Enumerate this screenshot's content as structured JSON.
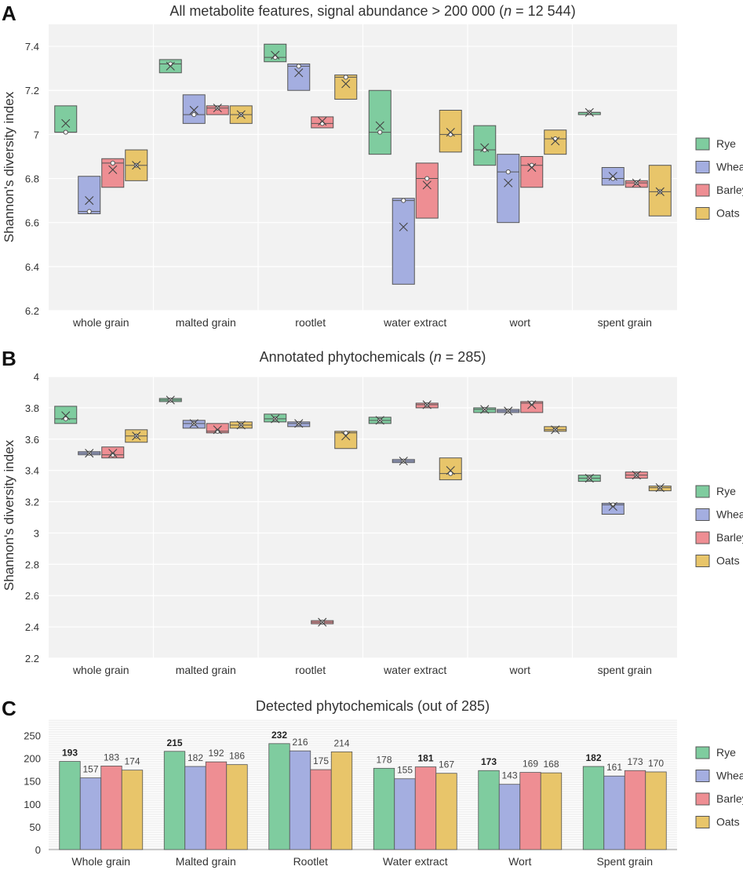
{
  "colors": {
    "Rye": "#7fcc9f",
    "Wheat": "#a4aee0",
    "Barley": "#ee8e93",
    "Oats": "#e8c56a",
    "plot_bg": "#f2f2f2",
    "grid": "#ffffff",
    "edge": "#555555"
  },
  "legend": [
    "Rye",
    "Wheat",
    "Barley",
    "Oats"
  ],
  "chart_data": [
    {
      "panel": "A",
      "type": "box",
      "title_parts": [
        "All metabolite features, signal abundance > 200 000 (",
        "n",
        " = 12 544)"
      ],
      "ylabel": "Shannon's diversity index",
      "ylim": [
        6.2,
        7.5
      ],
      "yticks": [
        6.2,
        6.4,
        6.6,
        6.8,
        7,
        7.2,
        7.4
      ],
      "ytick_labels": [
        "6.2",
        "6.4",
        "6.6",
        "6.8",
        "7",
        "7.2",
        "7.4"
      ],
      "categories": [
        "whole grain",
        "malted grain",
        "rootlet",
        "water extract",
        "wort",
        "spent grain"
      ],
      "series": [
        {
          "name": "Rye",
          "boxes": [
            {
              "q1": 7.01,
              "q3": 7.13,
              "median": 7.01,
              "mean": 7.05,
              "point": 7.01
            },
            {
              "q1": 7.28,
              "q3": 7.34,
              "median": 7.32,
              "mean": 7.31,
              "point": 7.32
            },
            {
              "q1": 7.33,
              "q3": 7.41,
              "median": 7.35,
              "mean": 7.36,
              "point": 7.35
            },
            {
              "q1": 6.91,
              "q3": 7.2,
              "median": 7.01,
              "mean": 7.04,
              "point": 7.01
            },
            {
              "q1": 6.86,
              "q3": 7.04,
              "median": 6.93,
              "mean": 6.94,
              "point": 6.93
            },
            {
              "q1": 7.09,
              "q3": 7.1,
              "median": 7.1,
              "mean": 7.1,
              "point": 7.1
            }
          ]
        },
        {
          "name": "Wheat",
          "boxes": [
            {
              "q1": 6.64,
              "q3": 6.81,
              "median": 6.65,
              "mean": 6.7,
              "point": 6.65
            },
            {
              "q1": 7.05,
              "q3": 7.18,
              "median": 7.09,
              "mean": 7.11,
              "point": 7.09
            },
            {
              "q1": 7.2,
              "q3": 7.32,
              "median": 7.31,
              "mean": 7.28,
              "point": 7.31
            },
            {
              "q1": 6.32,
              "q3": 6.71,
              "median": 6.7,
              "mean": 6.58,
              "point": 6.7
            },
            {
              "q1": 6.6,
              "q3": 6.91,
              "median": 6.83,
              "mean": 6.78,
              "point": 6.83
            },
            {
              "q1": 6.77,
              "q3": 6.85,
              "median": 6.8,
              "mean": 6.81,
              "point": 6.8
            }
          ]
        },
        {
          "name": "Barley",
          "boxes": [
            {
              "q1": 6.76,
              "q3": 6.89,
              "median": 6.87,
              "mean": 6.84,
              "point": 6.87
            },
            {
              "q1": 7.09,
              "q3": 7.13,
              "median": 7.12,
              "mean": 7.12,
              "point": 7.12
            },
            {
              "q1": 7.03,
              "q3": 7.08,
              "median": 7.05,
              "mean": 7.06,
              "point": 7.05
            },
            {
              "q1": 6.62,
              "q3": 6.87,
              "median": 6.8,
              "mean": 6.77,
              "point": 6.8
            },
            {
              "q1": 6.76,
              "q3": 6.9,
              "median": 6.86,
              "mean": 6.85,
              "point": 6.86
            },
            {
              "q1": 6.76,
              "q3": 6.79,
              "median": 6.78,
              "mean": 6.78,
              "point": 6.78
            }
          ]
        },
        {
          "name": "Oats",
          "boxes": [
            {
              "q1": 6.79,
              "q3": 6.93,
              "median": 6.86,
              "mean": 6.86,
              "point": 6.86
            },
            {
              "q1": 7.05,
              "q3": 7.13,
              "median": 7.09,
              "mean": 7.09,
              "point": 7.09
            },
            {
              "q1": 7.16,
              "q3": 7.27,
              "median": 7.26,
              "mean": 7.23,
              "point": 7.26
            },
            {
              "q1": 6.92,
              "q3": 7.11,
              "median": 7.0,
              "mean": 7.01,
              "point": 7.0
            },
            {
              "q1": 6.91,
              "q3": 7.02,
              "median": 6.98,
              "mean": 6.97,
              "point": 6.98
            },
            {
              "q1": 6.63,
              "q3": 6.86,
              "median": 6.74,
              "mean": 6.74,
              "point": 6.74
            }
          ]
        }
      ]
    },
    {
      "panel": "B",
      "type": "box",
      "title_parts": [
        "Annotated phytochemicals (",
        "n",
        " = 285)"
      ],
      "ylabel": "Shannon's diversity index",
      "ylim": [
        2.2,
        4.0
      ],
      "yticks": [
        2.2,
        2.4,
        2.6,
        2.8,
        3,
        3.2,
        3.4,
        3.6,
        3.8,
        4
      ],
      "ytick_labels": [
        "2.2",
        "2.4",
        "2.6",
        "2.8",
        "3",
        "3.2",
        "3.4",
        "3.6",
        "3.8",
        "4"
      ],
      "categories": [
        "whole grain",
        "malted grain",
        "rootlet",
        "water extract",
        "wort",
        "spent grain"
      ],
      "series": [
        {
          "name": "Rye",
          "boxes": [
            {
              "q1": 3.7,
              "q3": 3.81,
              "median": 3.73,
              "mean": 3.75,
              "point": 3.73
            },
            {
              "q1": 3.84,
              "q3": 3.86,
              "median": 3.85,
              "mean": 3.85,
              "point": 3.85
            },
            {
              "q1": 3.71,
              "q3": 3.76,
              "median": 3.73,
              "mean": 3.73,
              "point": 3.73
            },
            {
              "q1": 3.7,
              "q3": 3.74,
              "median": 3.72,
              "mean": 3.72,
              "point": 3.72
            },
            {
              "q1": 3.77,
              "q3": 3.8,
              "median": 3.79,
              "mean": 3.79,
              "point": 3.79
            },
            {
              "q1": 3.33,
              "q3": 3.37,
              "median": 3.35,
              "mean": 3.35,
              "point": 3.35
            }
          ]
        },
        {
          "name": "Wheat",
          "boxes": [
            {
              "q1": 3.5,
              "q3": 3.52,
              "median": 3.51,
              "mean": 3.51,
              "point": 3.51
            },
            {
              "q1": 3.67,
              "q3": 3.72,
              "median": 3.7,
              "mean": 3.7,
              "point": 3.7
            },
            {
              "q1": 3.68,
              "q3": 3.71,
              "median": 3.7,
              "mean": 3.7,
              "point": 3.7
            },
            {
              "q1": 3.45,
              "q3": 3.47,
              "median": 3.46,
              "mean": 3.46,
              "point": 3.46
            },
            {
              "q1": 3.77,
              "q3": 3.79,
              "median": 3.78,
              "mean": 3.78,
              "point": 3.78
            },
            {
              "q1": 3.12,
              "q3": 3.19,
              "median": 3.18,
              "mean": 3.17,
              "point": 3.18
            }
          ]
        },
        {
          "name": "Barley",
          "boxes": [
            {
              "q1": 3.48,
              "q3": 3.55,
              "median": 3.5,
              "mean": 3.51,
              "point": 3.5
            },
            {
              "q1": 3.64,
              "q3": 3.7,
              "median": 3.65,
              "mean": 3.66,
              "point": 3.65
            },
            {
              "q1": 2.42,
              "q3": 2.44,
              "median": 2.43,
              "mean": 2.43,
              "point": 2.43
            },
            {
              "q1": 3.8,
              "q3": 3.83,
              "median": 3.82,
              "mean": 3.82,
              "point": 3.82
            },
            {
              "q1": 3.77,
              "q3": 3.84,
              "median": 3.83,
              "mean": 3.82,
              "point": 3.83
            },
            {
              "q1": 3.35,
              "q3": 3.39,
              "median": 3.37,
              "mean": 3.37,
              "point": 3.37
            }
          ]
        },
        {
          "name": "Oats",
          "boxes": [
            {
              "q1": 3.58,
              "q3": 3.66,
              "median": 3.62,
              "mean": 3.62,
              "point": 3.62
            },
            {
              "q1": 3.67,
              "q3": 3.71,
              "median": 3.69,
              "mean": 3.69,
              "point": 3.69
            },
            {
              "q1": 3.54,
              "q3": 3.65,
              "median": 3.64,
              "mean": 3.62,
              "point": 3.64
            },
            {
              "q1": 3.34,
              "q3": 3.48,
              "median": 3.38,
              "mean": 3.4,
              "point": 3.38
            },
            {
              "q1": 3.65,
              "q3": 3.68,
              "median": 3.66,
              "mean": 3.66,
              "point": 3.66
            },
            {
              "q1": 3.27,
              "q3": 3.3,
              "median": 3.29,
              "mean": 3.29,
              "point": 3.29
            }
          ]
        }
      ]
    },
    {
      "panel": "C",
      "type": "bar",
      "title": "Detected phytochemicals (out of 285)",
      "ylim": [
        0,
        285
      ],
      "yticks": [
        0,
        50,
        100,
        150,
        200,
        250
      ],
      "ytick_labels": [
        "0",
        "50",
        "100",
        "150",
        "200",
        "250"
      ],
      "categories": [
        "Whole grain",
        "Malted grain",
        "Rootlet",
        "Water extract",
        "Wort",
        "Spent grain"
      ],
      "series": [
        {
          "name": "Rye",
          "values": [
            193,
            215,
            232,
            178,
            173,
            182
          ],
          "labels": [
            "193",
            "215",
            "232",
            "178",
            "173",
            "182"
          ]
        },
        {
          "name": "Wheat",
          "values": [
            157,
            182,
            216,
            155,
            143,
            161
          ],
          "labels": [
            "157",
            "182",
            "216",
            "155",
            "143",
            "161"
          ]
        },
        {
          "name": "Barley",
          "values": [
            183,
            192,
            175,
            181,
            169,
            173
          ],
          "labels": [
            "183",
            "192",
            "175",
            "181",
            "169",
            "173"
          ]
        },
        {
          "name": "Oats",
          "values": [
            174,
            186,
            214,
            167,
            168,
            170
          ],
          "labels": [
            "174",
            "186",
            "214",
            "167",
            "168",
            "170"
          ]
        }
      ],
      "bold_max": true
    }
  ]
}
